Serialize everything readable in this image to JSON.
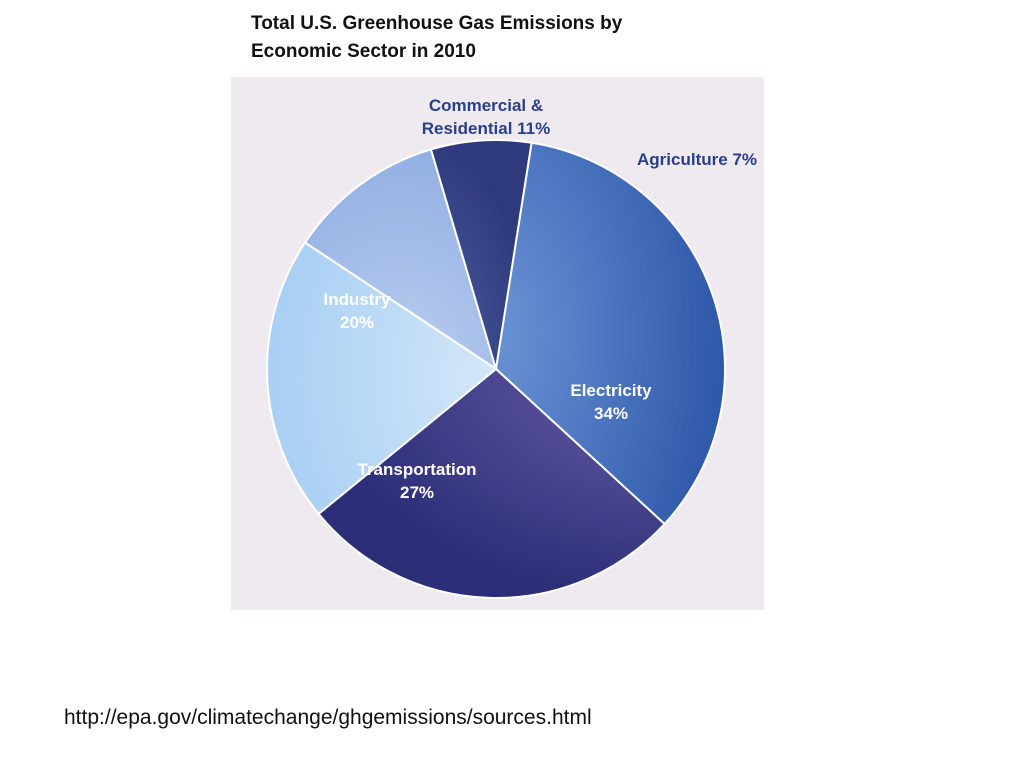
{
  "header": {
    "title_line1": "Total U.S. Greenhouse Gas Emissions by",
    "title_line2": "Economic Sector in 2010"
  },
  "footer": {
    "source_url": "http://epa.gov/climatechange/ghgemissions/sources.html"
  },
  "chart_data": {
    "type": "pie",
    "title": "Total U.S. Greenhouse Gas Emissions by Economic Sector in 2010",
    "unit": "%",
    "slices": [
      {
        "label": "Commercial & Residential",
        "value": 11,
        "display": [
          "Commercial &",
          "Residential 11%"
        ],
        "color": "#9db8e6",
        "label_color": "#2a3f8a",
        "label_placement": "outside"
      },
      {
        "label": "Agriculture",
        "value": 7,
        "display": [
          "Agriculture 7%"
        ],
        "color": "#3b4a8e",
        "label_color": "#2a3f8a",
        "label_placement": "outside"
      },
      {
        "label": "Electricity",
        "value": 34,
        "display": [
          "Electricity",
          "34%"
        ],
        "color": "#3f68b6",
        "label_color": "#ffffff",
        "label_placement": "inside"
      },
      {
        "label": "Transportation",
        "value": 27,
        "display": [
          "Transportation",
          "27%"
        ],
        "color": "#3f3f8c",
        "label_color": "#ffffff",
        "label_placement": "inside"
      },
      {
        "label": "Industry",
        "value": 20,
        "display": [
          "Industry",
          "20%"
        ],
        "color": "#b4d6f6",
        "label_color": "#ffffff",
        "label_placement": "inside"
      }
    ]
  }
}
